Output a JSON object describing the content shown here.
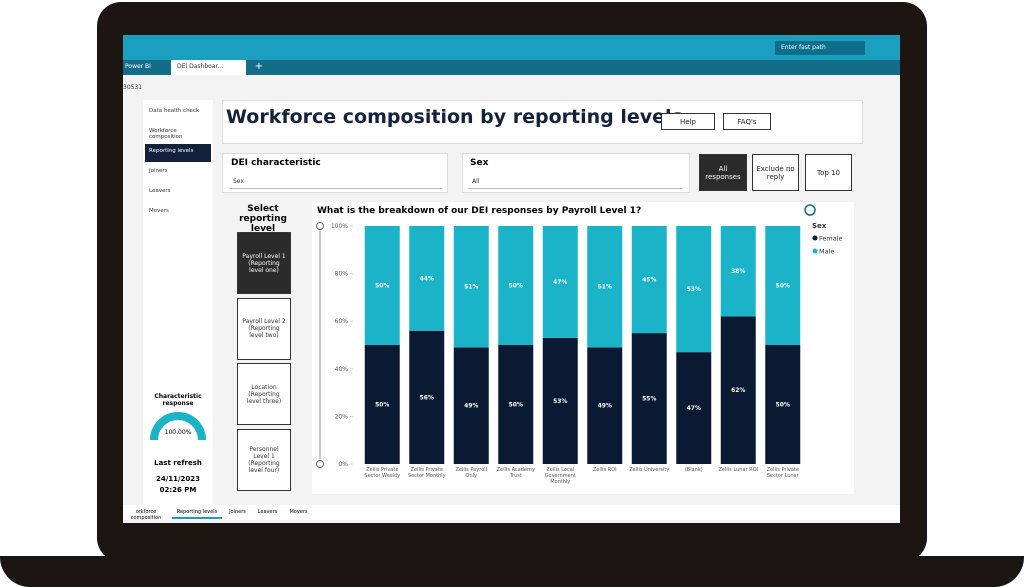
{
  "app": {
    "search_placeholder": "Enter fast path",
    "tabs": [
      "Power BI",
      "DEI Dashboar..."
    ],
    "id": "30531"
  },
  "nav": [
    "Data health check",
    "Workforce composition",
    "Reporting levels",
    "Joiners",
    "Leavers",
    "Movers"
  ],
  "characteristic_response": {
    "label": "Characteristic response",
    "value": 100,
    "value_label": "100.00%"
  },
  "last_refresh": {
    "label": "Last refresh",
    "date": "24/11/2023",
    "time": "02:26 PM"
  },
  "header": {
    "title": "Workforce composition by reporting levels",
    "buttons": [
      "Help",
      "FAQ's"
    ]
  },
  "filters": [
    {
      "label": "DEI characteristic",
      "value": "Sex"
    },
    {
      "label": "Sex",
      "value": "All"
    }
  ],
  "response_buttons": [
    "All responses",
    "Exclude no reply",
    "Top 10"
  ],
  "reporting_level": {
    "title": "Select reporting level",
    "options": [
      "Payroll Level 1 (Reporting level one)",
      "Payroll Level 2 (Reporting level two)",
      "Location (Reporting level three)",
      "Personnel Level 1 (Reporting level four)"
    ]
  },
  "bottom_tabs": [
    "orkforce composition",
    "Reporting levels",
    "Joiners",
    "Leavers",
    "Movers"
  ],
  "chart_data": {
    "type": "bar",
    "stacked": true,
    "title": "What is the breakdown of our DEI responses by Payroll Level 1?",
    "legend_title": "Sex",
    "categories": [
      "Zellis Private Sector Weekly",
      "Zellis Private Sector Monthly",
      "Zellis Payroll Only",
      "Zellis Academy Trust",
      "Zellis Local Government Monthly",
      "Zellis ROI",
      "Zellis University",
      "(Blank)",
      "Zellis Lunar ROI",
      "Zellis Private Sector Lunar"
    ],
    "series": [
      {
        "name": "Female",
        "color": "#0b1a33",
        "values": [
          50,
          56,
          49,
          50,
          53,
          49,
          55,
          47,
          62,
          50
        ],
        "value_labels": [
          "50%",
          "56%",
          "49%",
          "50%",
          "53%",
          "49%",
          "55%",
          "47%",
          "62%",
          "50%"
        ]
      },
      {
        "name": "Male",
        "color": "#1bb3c8",
        "values": [
          50,
          44,
          51,
          50,
          47,
          51,
          45,
          53,
          38,
          50
        ],
        "value_labels": [
          "50%",
          "44%",
          "51%",
          "50%",
          "47%",
          "51%",
          "45%",
          "53%",
          "38%",
          "50%"
        ]
      }
    ],
    "ylim": [
      0,
      100
    ],
    "yticks": [
      {
        "value": 0,
        "label": "0%"
      },
      {
        "value": 20,
        "label": "20%"
      },
      {
        "value": 40,
        "label": "40%"
      },
      {
        "value": 60,
        "label": "60%"
      },
      {
        "value": 80,
        "label": "80%"
      },
      {
        "value": 100,
        "label": "100%"
      }
    ]
  }
}
